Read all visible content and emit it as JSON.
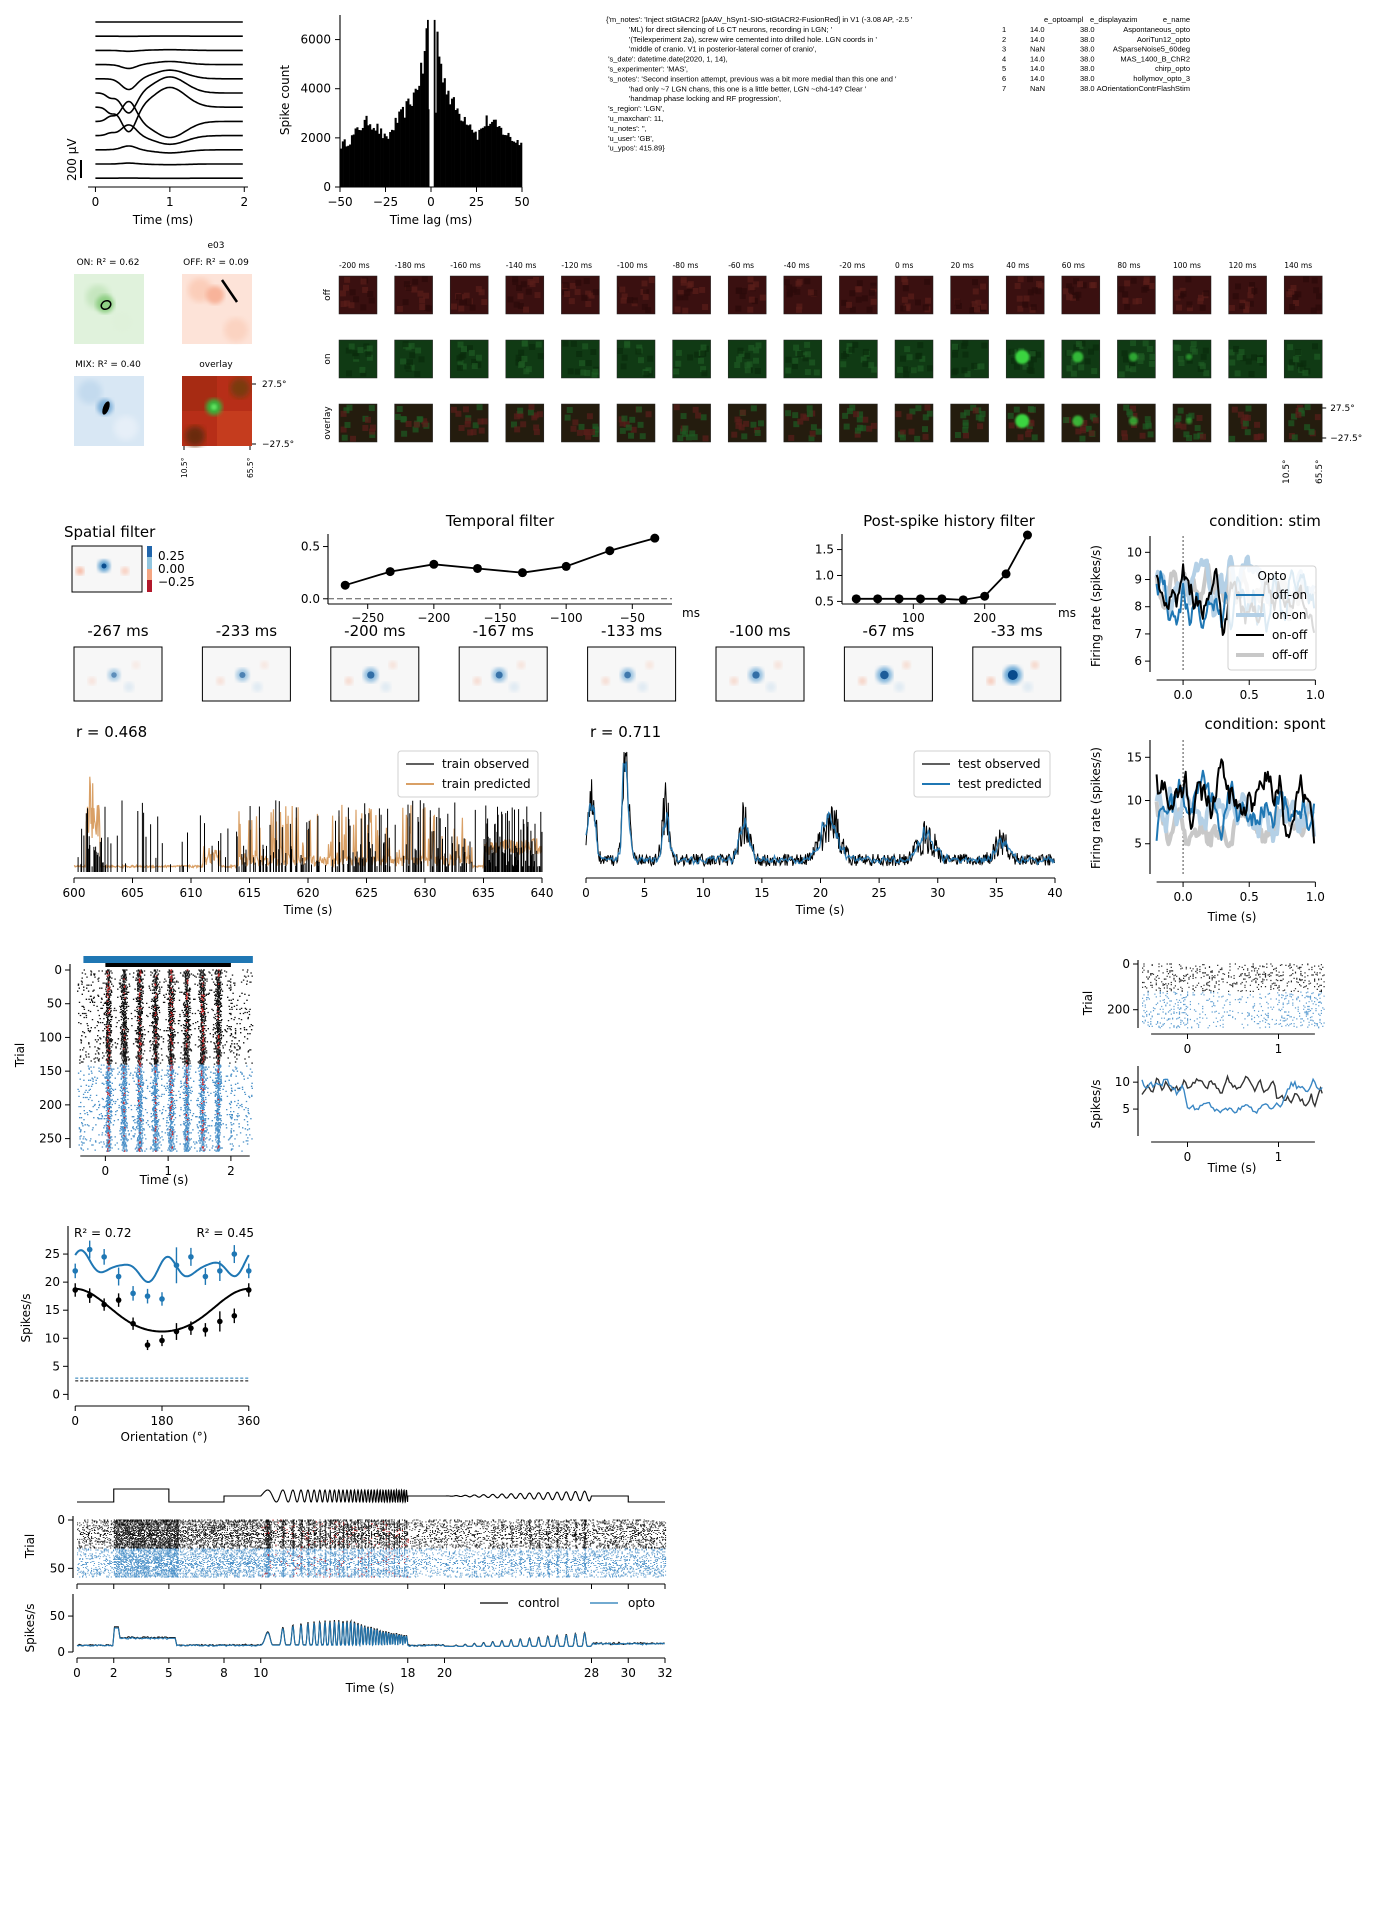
{
  "colors": {
    "black": "#000000",
    "blue": "#1f77b4",
    "lightblue": "#8fbbd9",
    "gray": "#bdbdbd",
    "orange": "#d9a066",
    "red": "#d62728",
    "on_green": "#2ca02c",
    "off_red": "#e8603c"
  },
  "waveform": {
    "xlabel": "Time (ms)",
    "scalebar_label": "200 µV",
    "x_ticks": [
      "0",
      "1",
      "2"
    ]
  },
  "autocorr": {
    "xlabel": "Time lag (ms)",
    "ylabel": "Spike count",
    "x_ticks": [
      "−50",
      "−25",
      "0",
      "25",
      "50"
    ],
    "y_ticks": [
      "0",
      "2000",
      "4000",
      "6000"
    ]
  },
  "notes_text": [
    "{'m_notes': 'Inject stGtACR2 [pAAV_hSyn1-SIO-stGtACR2-FusionRed] in V1 (-3.08 AP, -2.5 '",
    "           'ML) for direct silencing of L6 CT neurons, recording in LGN; '",
    "           '(Teilexperiment 2a), screw wire cemented into drilled hole. LGN coords in '",
    "           'middle of cranio. V1 in posterior-lateral corner of cranio',",
    " 's_date': datetime.date(2020, 1, 14),",
    " 's_experimenter': 'MAS',",
    " 's_notes': 'Second insertion attempt, previous was a bit more medial than this one and '",
    "           'had only ~7 LGN chans, this one is a little better, LGN ~ch4-14? Clear '",
    "           'handmap phase locking and RF progression',",
    " 's_region': 'LGN',",
    " 'u_maxchan': 11,",
    " 'u_notes': '',",
    " 'u_user': 'GB',",
    " 'u_ypos': 415.89}"
  ],
  "exp_table": {
    "headers": [
      "",
      "e_optoampl",
      "e_displayazim",
      "e_name"
    ],
    "rows": [
      [
        "1",
        "14.0",
        "38.0",
        "Aspontaneous_opto"
      ],
      [
        "2",
        "14.0",
        "38.0",
        "AoriTun12_opto"
      ],
      [
        "3",
        "NaN",
        "38.0",
        "ASparseNoise5_60deg"
      ],
      [
        "4",
        "14.0",
        "38.0",
        "MAS_1400_B_ChR2"
      ],
      [
        "5",
        "14.0",
        "38.0",
        "chirp_opto"
      ],
      [
        "6",
        "14.0",
        "38.0",
        "hollymov_opto_3"
      ],
      [
        "7",
        "NaN",
        "38.0",
        "AOrientationContrFlashStim"
      ]
    ]
  },
  "rf": {
    "unit_label": "e03",
    "on_label": "ON: R² = 0.62",
    "off_label": "OFF: R² = 0.09",
    "mix_label": "MIX: R² = 0.40",
    "overlay_label": "overlay",
    "y_ticks": [
      "27.5°",
      "−27.5°"
    ],
    "x_ticks": [
      "10.5°",
      "65.5°"
    ]
  },
  "strf": {
    "time_labels": [
      "-200 ms",
      "-180 ms",
      "-160 ms",
      "-140 ms",
      "-120 ms",
      "-100 ms",
      "-80 ms",
      "-60 ms",
      "-40 ms",
      "-20 ms",
      "0 ms",
      "20 ms",
      "40 ms",
      "60 ms",
      "80 ms",
      "100 ms",
      "120 ms",
      "140 ms"
    ],
    "row_labels": [
      "off",
      "on",
      "overlay"
    ],
    "y_ticks": [
      "27.5°",
      "−27.5°"
    ],
    "x_ticks": [
      "10.5°",
      "65.5°"
    ]
  },
  "glm": {
    "spatial_title": "Spatial filter",
    "cbar_ticks": [
      "0.25",
      "0.00",
      "−0.25"
    ],
    "temporal_title": "Temporal filter",
    "history_title": "Post-spike history filter",
    "frame_labels": [
      "-267 ms",
      "-233 ms",
      "-200 ms",
      "-167 ms",
      "-133 ms",
      "-100 ms",
      "-67 ms",
      "-33 ms"
    ],
    "train_r": "r = 0.468",
    "test_r": "r = 0.711",
    "train_obs": "train observed",
    "train_pred": "train predicted",
    "test_obs": "test observed",
    "test_pred": "test predicted",
    "time_xlabel": "Time (s)"
  },
  "psth_stim": {
    "title": "condition: stim",
    "ylabel": "Firing rate (spikes/s)",
    "legend_title": "Opto",
    "legend": [
      "off-on",
      "on-on",
      "on-off",
      "off-off"
    ]
  },
  "psth_spont": {
    "title": "condition: spont",
    "ylabel": "Firing rate (spikes/s)",
    "xlabel": "Time (s)"
  },
  "raster_grating": {
    "ylabel": "Trial",
    "xlabel": "Time (s)"
  },
  "raster_spont": {
    "ylabel": "Trial",
    "rate_ylabel": "Spikes/s",
    "xlabel": "Time (s)"
  },
  "chirp": {
    "trial_label": "Trial",
    "rate_label": "Spikes/s",
    "xlabel": "Time (s)",
    "legend": [
      "control",
      "opto"
    ]
  },
  "chart_data": [
    {
      "id": "waveform",
      "type": "line",
      "title": "",
      "xlabel": "Time (ms)",
      "xlim": [
        -0.1,
        2.05
      ],
      "channels": 12,
      "peak_channel": 6,
      "scalebar_uv": 200
    },
    {
      "id": "autocorr",
      "type": "bar",
      "xlabel": "Time lag (ms)",
      "ylabel": "Spike count",
      "xlim": [
        -50,
        50
      ],
      "ylim": [
        0,
        7000
      ],
      "x": [
        -50,
        -45,
        -40,
        -35,
        -30,
        -25,
        -20,
        -15,
        -10,
        -7,
        -5,
        -3,
        -1,
        1,
        3,
        5,
        7,
        10,
        15,
        20,
        25,
        30,
        35,
        40,
        45,
        50
      ],
      "values": [
        1700,
        1900,
        2400,
        2700,
        2400,
        1900,
        2600,
        3100,
        3700,
        4400,
        4800,
        6200,
        0,
        0,
        6200,
        4800,
        4400,
        3600,
        3000,
        2700,
        2100,
        2700,
        2500,
        2200,
        1900,
        1800
      ]
    },
    {
      "id": "temporal_filter",
      "type": "line",
      "title": "Temporal filter",
      "xlabel": "ms",
      "xlim": [
        -280,
        -20
      ],
      "ylim": [
        -0.05,
        0.62
      ],
      "x_ticks": [
        -250,
        -200,
        -150,
        -100,
        -50
      ],
      "y_ticks": [
        0.0,
        0.5
      ],
      "x": [
        -267,
        -233,
        -200,
        -167,
        -133,
        -100,
        -67,
        -33
      ],
      "y": [
        0.13,
        0.26,
        0.33,
        0.29,
        0.25,
        0.31,
        0.46,
        0.58
      ]
    },
    {
      "id": "history_filter",
      "type": "line",
      "title": "Post-spike history filter",
      "xlabel": "ms",
      "xlim": [
        0,
        300
      ],
      "ylim": [
        0.45,
        1.8
      ],
      "x_ticks": [
        100,
        200
      ],
      "y_ticks": [
        0.5,
        1.0,
        1.5
      ],
      "x": [
        20,
        50,
        80,
        110,
        140,
        170,
        200,
        230,
        260
      ],
      "y": [
        0.55,
        0.55,
        0.55,
        0.55,
        0.55,
        0.53,
        0.6,
        1.03,
        1.78
      ]
    },
    {
      "id": "glm_train",
      "type": "line",
      "xlabel": "Time (s)",
      "xlim": [
        600,
        640
      ],
      "x_ticks": [
        600,
        605,
        610,
        615,
        620,
        625,
        630,
        635,
        640
      ],
      "series": [
        {
          "name": "train observed",
          "color": "#000000"
        },
        {
          "name": "train predicted",
          "color": "#d9a066"
        }
      ],
      "r": 0.468
    },
    {
      "id": "glm_test",
      "type": "line",
      "xlabel": "Time (s)",
      "xlim": [
        0,
        40
      ],
      "x_ticks": [
        0,
        5,
        10,
        15,
        20,
        25,
        30,
        35,
        40
      ],
      "series": [
        {
          "name": "test observed",
          "color": "#000000"
        },
        {
          "name": "test predicted",
          "color": "#1f77b4"
        }
      ],
      "r": 0.711
    },
    {
      "id": "psth_stim",
      "type": "line",
      "title": "condition: stim",
      "xlim": [
        -0.25,
        1.05
      ],
      "ylim": [
        5.6,
        10.6
      ],
      "x_ticks": [
        0.0,
        0.5,
        1.0
      ],
      "y_ticks": [
        6,
        7,
        8,
        9,
        10
      ]
    },
    {
      "id": "psth_spont",
      "type": "line",
      "title": "condition: spont",
      "xlim": [
        -0.25,
        1.05
      ],
      "ylim": [
        1.5,
        17
      ],
      "x_ticks": [
        0.0,
        0.5,
        1.0
      ],
      "y_ticks": [
        5,
        10,
        15
      ]
    },
    {
      "id": "raster_grating",
      "type": "scatter",
      "xlabel": "Time (s)",
      "ylabel": "Trial",
      "xlim": [
        -0.5,
        2.4
      ],
      "ylim": [
        270,
        -10
      ],
      "x_ticks": [
        0,
        1,
        2
      ],
      "y_ticks": [
        0,
        50,
        100,
        150,
        200,
        250
      ],
      "control_trials": [
        0,
        140
      ],
      "opto_trials": [
        140,
        270
      ],
      "stim_bar": [
        -0.35,
        2.35
      ]
    },
    {
      "id": "raster_spont",
      "type": "scatter",
      "ylabel": "Trial",
      "xlim": [
        -0.5,
        1.5
      ],
      "ylim": [
        290,
        -20
      ],
      "x_ticks": [
        0,
        1
      ],
      "y_ticks": [
        0,
        200
      ]
    },
    {
      "id": "rate_spont",
      "type": "line",
      "xlabel": "Time (s)",
      "ylabel": "Spikes/s",
      "xlim": [
        -0.5,
        1.5
      ],
      "ylim": [
        0,
        13
      ],
      "x_ticks": [
        0,
        1
      ],
      "y_ticks": [
        5,
        10
      ]
    },
    {
      "id": "tuning",
      "type": "scatter",
      "xlabel": "Orientation (°)",
      "ylabel": "Spikes/s",
      "xlim": [
        -15,
        375
      ],
      "ylim": [
        -1,
        30
      ],
      "x_ticks": [
        0,
        180,
        360
      ],
      "y_ticks": [
        0,
        5,
        10,
        15,
        20,
        25
      ],
      "series": [
        {
          "name": "control",
          "color": "#000000",
          "r2": "R² = 0.72",
          "x": [
            0,
            30,
            60,
            90,
            120,
            150,
            180,
            210,
            240,
            270,
            300,
            330,
            360
          ],
          "y": [
            18.6,
            17.6,
            16,
            16.8,
            12.6,
            8.8,
            9.6,
            11.2,
            11.8,
            11.5,
            13,
            14,
            18.6
          ],
          "err": [
            1.2,
            1.3,
            1.1,
            1.2,
            1.1,
            0.9,
            1.0,
            1.5,
            1.2,
            1.2,
            1.8,
            1.3,
            1.2
          ],
          "spont": 2.4
        },
        {
          "name": "opto",
          "color": "#1f77b4",
          "r2": "R² = 0.45",
          "x": [
            0,
            30,
            60,
            90,
            120,
            150,
            180,
            210,
            240,
            270,
            300,
            330,
            360
          ],
          "y": [
            22,
            25.8,
            24.5,
            21,
            18,
            17.5,
            17,
            23,
            24.5,
            21,
            22,
            25,
            22
          ],
          "err": [
            1.3,
            1.6,
            1.4,
            1.6,
            1.3,
            1.3,
            1.2,
            3.2,
            1.6,
            1.5,
            1.8,
            1.6,
            1.3
          ],
          "spont": 2.9
        }
      ]
    },
    {
      "id": "chirp",
      "type": "line",
      "xlabel": "Time (s)",
      "xlim": [
        0,
        32
      ],
      "x_ticks": [
        0,
        2,
        5,
        8,
        10,
        18,
        20,
        28,
        30,
        32
      ],
      "trial_y_ticks": [
        0,
        50
      ],
      "rate_y_ticks": [
        0,
        50
      ],
      "rate_ylim": [
        0,
        80
      ],
      "series": [
        {
          "name": "control",
          "color": "#000000"
        },
        {
          "name": "opto",
          "color": "#1f77b4"
        }
      ]
    }
  ]
}
